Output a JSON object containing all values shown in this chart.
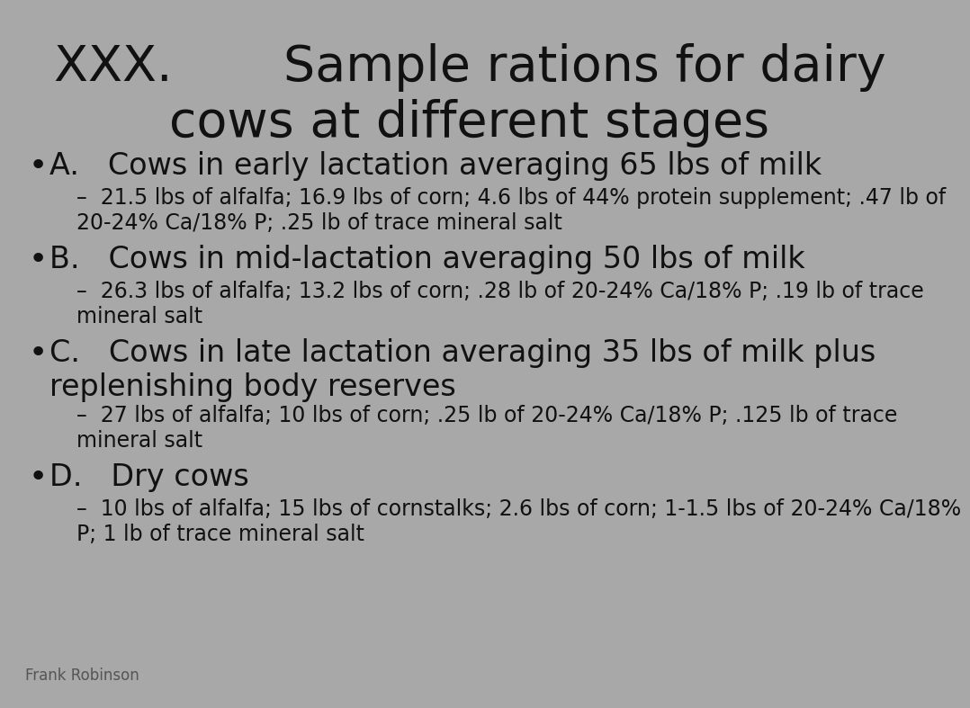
{
  "title_line1": "XXX.       Sample rations for dairy",
  "title_line2": "cows at different stages",
  "title_fontsize": 40,
  "bullet_fontsize": 24,
  "sub_fontsize": 17,
  "background_color": "#a8a8a8",
  "text_color": "#111111",
  "items": [
    {
      "letter": "A.",
      "header": "   Cows in early lactation averaging 65 lbs of milk",
      "header_lines": 1,
      "details": "21.5 lbs of alfalfa; 16.9 lbs of corn; 4.6 lbs of 44% protein supplement; .47 lb of\n20-24% Ca/18% P; .25 lb of trace mineral salt",
      "detail_lines": 2
    },
    {
      "letter": "B.",
      "header": "   Cows in mid-lactation averaging 50 lbs of milk",
      "header_lines": 1,
      "details": "26.3 lbs of alfalfa; 13.2 lbs of corn; .28 lb of 20-24% Ca/18% P; .19 lb of trace\nmineral salt",
      "detail_lines": 2
    },
    {
      "letter": "C.",
      "header": "   Cows in late lactation averaging 35 lbs of milk plus\nreplenishing body reserves",
      "header_lines": 2,
      "details": "27 lbs of alfalfa; 10 lbs of corn; .25 lb of 20-24% Ca/18% P; .125 lb of trace\nmineral salt",
      "detail_lines": 2
    },
    {
      "letter": "D.",
      "header": "   Dry cows",
      "header_lines": 1,
      "details": "10 lbs of alfalfa; 15 lbs of cornstalks; 2.6 lbs of corn; 1-1.5 lbs of 20-24% Ca/18%\nP; 1 lb of trace mineral salt",
      "detail_lines": 2
    }
  ],
  "footer_text": "Frank Robinson",
  "footer_fontsize": 12
}
